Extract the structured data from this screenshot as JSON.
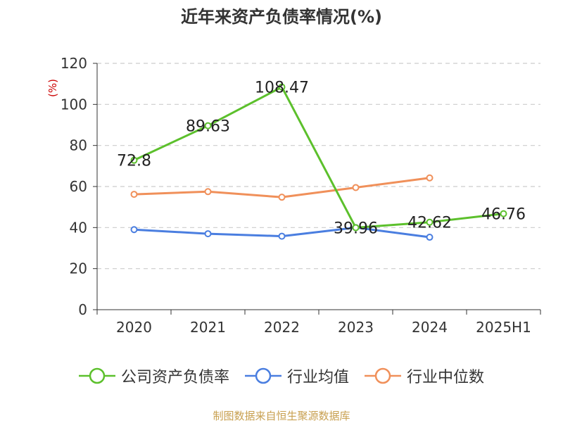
{
  "chart_data": {
    "type": "line",
    "title": "近年来资产负债率情况(%)",
    "ylabel": "(%)",
    "xlabel": "",
    "categories": [
      "2020",
      "2021",
      "2022",
      "2023",
      "2024",
      "2025H1"
    ],
    "ylim": [
      0,
      120
    ],
    "yticks": [
      0,
      20,
      40,
      60,
      80,
      100,
      120
    ],
    "grid": true,
    "legend_position": "bottom",
    "series": [
      {
        "name": "公司资产负债率",
        "color": "#5cc02c",
        "values": [
          72.8,
          89.63,
          108.47,
          39.96,
          42.62,
          46.76
        ],
        "labels": [
          "72.8",
          "89.63",
          "108.47",
          "39.96",
          "42.62",
          "46.76"
        ]
      },
      {
        "name": "行业均值",
        "color": "#4a7ee0",
        "values": [
          39,
          37,
          35.8,
          40,
          35.3,
          null
        ]
      },
      {
        "name": "行业中位数",
        "color": "#f0905a",
        "values": [
          56.2,
          57.5,
          54.8,
          59.5,
          64.2,
          null
        ]
      }
    ]
  },
  "source": "制图数据来自恒生聚源数据库"
}
